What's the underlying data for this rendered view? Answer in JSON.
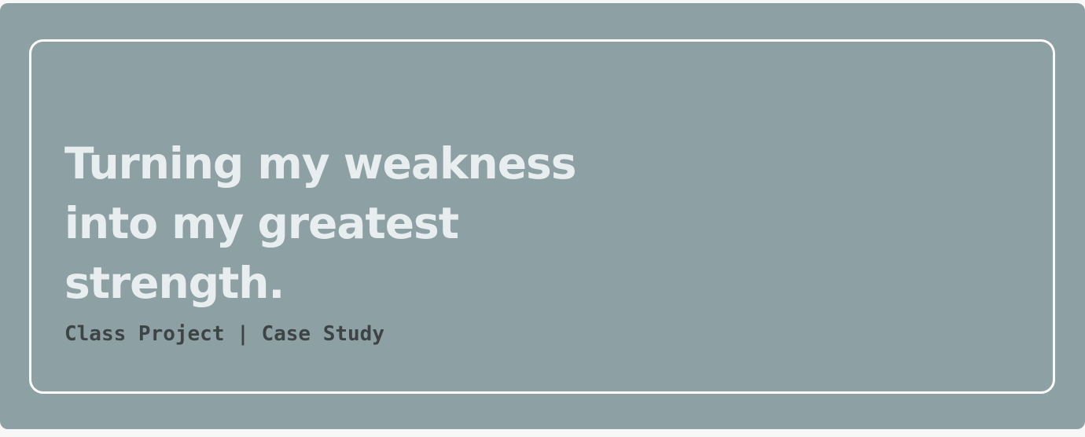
{
  "hero": {
    "headline_lines": [
      "Turning my weakness",
      "into my greatest",
      "strength."
    ],
    "subtitle": "Class Project | Case Study"
  },
  "colors": {
    "card_background": "#8da1a4",
    "frame_border": "#ffffff",
    "headline_text": "#e8eef0",
    "subtitle_text": "#3e4446"
  }
}
